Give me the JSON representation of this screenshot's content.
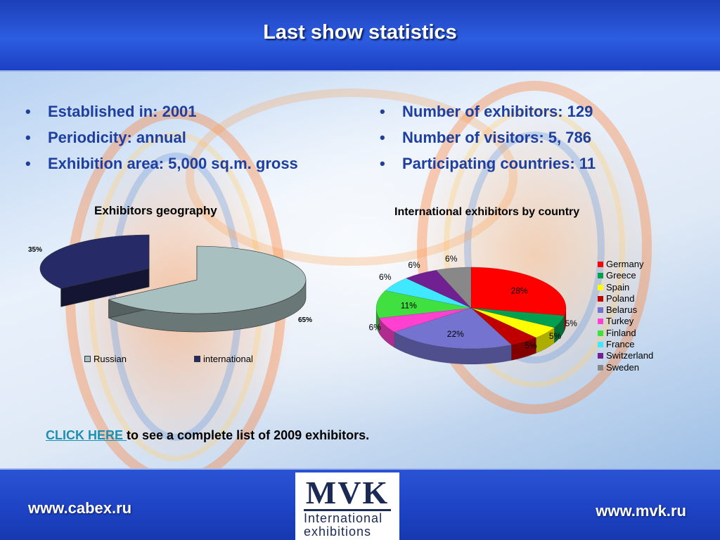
{
  "header": {
    "title": "Last show statistics"
  },
  "left_bullets": [
    "Established in: 2001",
    "Periodicity: annual",
    "Exhibition area: 5,000 sq.m. gross"
  ],
  "right_bullets": [
    "Number of exhibitors: 129",
    "Number of visitors: 5, 786",
    "Participating countries: 11"
  ],
  "cta": {
    "link_text": "CLICK HERE ",
    "rest_text": "to see a complete list of 2009 exhibitors."
  },
  "footer": {
    "left_url": "www.cabex.ru",
    "right_url": "www.mvk.ru",
    "logo_main": "MVK",
    "logo_line1": "International",
    "logo_line2": "exhibitions"
  },
  "chart_data": [
    {
      "type": "pie",
      "title": "Exhibitors geography",
      "categories": [
        "Russian",
        "international"
      ],
      "values": [
        65,
        35
      ],
      "labels": [
        "65%",
        "35%"
      ],
      "colors": [
        "#a9c0c0",
        "#262a66"
      ],
      "legend_position": "bottom",
      "three_d": true,
      "exploded": true
    },
    {
      "type": "pie",
      "title": "International exhibitors by country",
      "categories": [
        "Germany",
        "Greece",
        "Spain",
        "Poland",
        "Belarus",
        "Turkey",
        "Finland",
        "France",
        "Switzerland",
        "Sweden"
      ],
      "values": [
        28,
        5,
        5,
        5,
        22,
        6,
        11,
        6,
        6,
        6
      ],
      "labels": [
        "28%",
        "5%",
        "5%",
        "5%",
        "22%",
        "6%",
        "11%",
        "6%",
        "6%",
        "6%"
      ],
      "colors": [
        "#ff0000",
        "#00a050",
        "#ffff00",
        "#c00000",
        "#7474d0",
        "#ff40d0",
        "#40e040",
        "#40e8ff",
        "#702090",
        "#888888"
      ],
      "legend_position": "right",
      "three_d": true
    }
  ]
}
